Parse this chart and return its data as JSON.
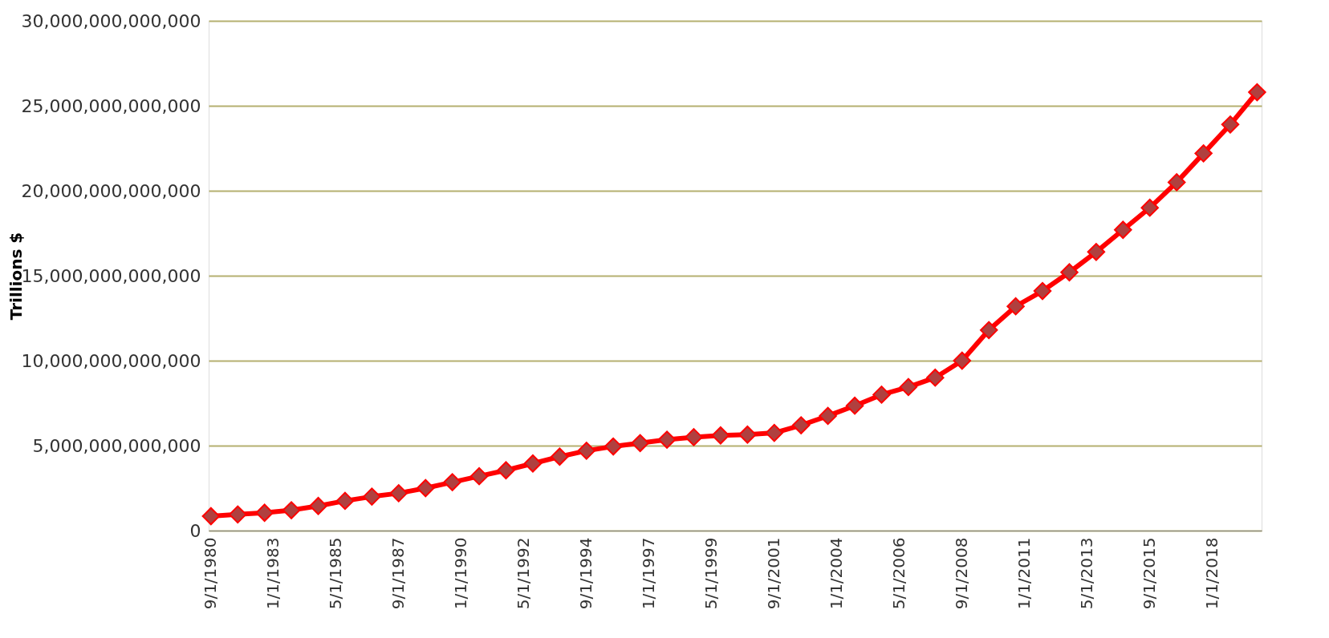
{
  "chart_data": {
    "type": "line",
    "ylabel": "Trillions $",
    "x": [
      "1980-09",
      "1981-09",
      "1982-09",
      "1983-09",
      "1984-09",
      "1985-09",
      "1986-09",
      "1987-09",
      "1988-09",
      "1989-09",
      "1990-09",
      "1991-09",
      "1992-09",
      "1993-09",
      "1994-09",
      "1995-09",
      "1996-09",
      "1997-09",
      "1998-09",
      "1999-09",
      "2000-09",
      "2001-09",
      "2002-09",
      "2003-09",
      "2004-09",
      "2005-09",
      "2006-09",
      "2007-09",
      "2008-09",
      "2009-09",
      "2010-09",
      "2011-09",
      "2012-09",
      "2013-09",
      "2014-09",
      "2015-09",
      "2016-09",
      "2017-09",
      "2018-09",
      "2019-09"
    ],
    "series": [
      {
        "color": "#ff0000",
        "values": [
          850000000000,
          950000000000,
          1050000000000,
          1200000000000,
          1450000000000,
          1750000000000,
          2000000000000,
          2200000000000,
          2500000000000,
          2850000000000,
          3200000000000,
          3550000000000,
          3950000000000,
          4350000000000,
          4700000000000,
          4950000000000,
          5150000000000,
          5350000000000,
          5500000000000,
          5600000000000,
          5650000000000,
          5750000000000,
          6200000000000,
          6750000000000,
          7350000000000,
          8000000000000,
          8450000000000,
          9000000000000,
          10000000000000,
          11800000000000,
          13200000000000,
          14100000000000,
          15200000000000,
          16400000000000,
          17700000000000,
          19000000000000,
          20500000000000,
          22200000000000,
          23900000000000,
          25800000000000
        ]
      }
    ],
    "xlim": [
      "1980-08",
      "2019-11"
    ],
    "xticks": [
      {
        "value": "1980-09",
        "label": "9/1/1980"
      },
      {
        "value": "1983-01",
        "label": "1/1/1983"
      },
      {
        "value": "1985-05",
        "label": "5/1/1985"
      },
      {
        "value": "1987-09",
        "label": "9/1/1987"
      },
      {
        "value": "1990-01",
        "label": "1/1/1990"
      },
      {
        "value": "1992-05",
        "label": "5/1/1992"
      },
      {
        "value": "1994-09",
        "label": "9/1/1994"
      },
      {
        "value": "1997-01",
        "label": "1/1/1997"
      },
      {
        "value": "1999-05",
        "label": "5/1/1999"
      },
      {
        "value": "2001-09",
        "label": "9/1/2001"
      },
      {
        "value": "2004-01",
        "label": "1/1/2004"
      },
      {
        "value": "2006-05",
        "label": "5/1/2006"
      },
      {
        "value": "2008-09",
        "label": "9/1/2008"
      },
      {
        "value": "2011-01",
        "label": "1/1/2011"
      },
      {
        "value": "2013-05",
        "label": "5/1/2013"
      },
      {
        "value": "2015-09",
        "label": "9/1/2015"
      },
      {
        "value": "2018-01",
        "label": "1/1/2018"
      }
    ],
    "ylim": [
      0,
      30000000000000
    ],
    "yticks": [
      0,
      {
        "value": 5000000000000,
        "label": "5,000,000,000,000"
      },
      {
        "value": 10000000000000,
        "label": "10,000,000,000,000"
      },
      {
        "value": 15000000000000,
        "label": "15,000,000,000,000"
      },
      {
        "value": 20000000000000,
        "label": "20,000,000,000,000"
      },
      {
        "value": 25000000000000,
        "label": "25,000,000,000,000"
      },
      {
        "value": 30000000000000,
        "label": "30,000,000,000,000"
      }
    ],
    "grid": "y",
    "marker": "diamond",
    "line_style": "solid"
  }
}
